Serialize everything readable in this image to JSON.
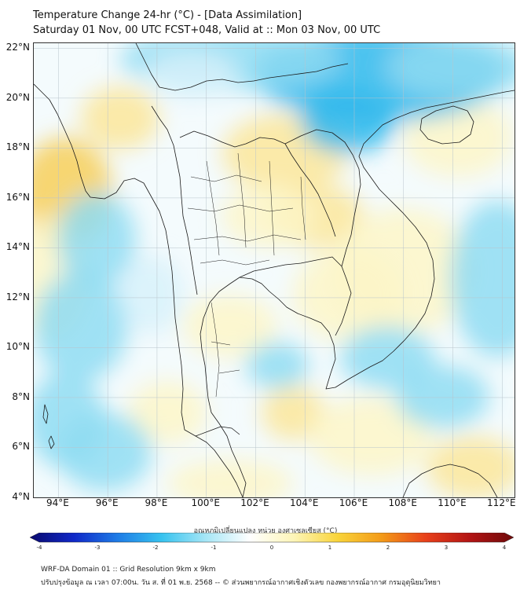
{
  "header": {
    "title": "Temperature Change 24-hr (°C) - [Data Assimilation]",
    "subtitle": "Saturday 01 Nov, 00 UTC FCST+048, Valid at :: Mon 03 Nov, 00 UTC"
  },
  "map": {
    "lat_labels": [
      "22°N",
      "20°N",
      "18°N",
      "16°N",
      "14°N",
      "12°N",
      "10°N",
      "8°N",
      "6°N",
      "4°N"
    ],
    "lon_labels": [
      "94°E",
      "96°E",
      "98°E",
      "100°E",
      "102°E",
      "104°E",
      "106°E",
      "108°E",
      "110°E",
      "112°E"
    ],
    "lat_range": [
      4,
      22.2
    ],
    "lon_range": [
      93,
      112.5
    ],
    "colors": {
      "land_border": "#1a1a1a",
      "grid": "#b8c4cc",
      "warm_light": "#fdf6c8",
      "warm": "#fbe69a",
      "warm_strong": "#f7cf5a",
      "cool_light": "#d7f1fa",
      "cool": "#8fdcf2",
      "cool_strong": "#2fb8ec"
    }
  },
  "colorbar": {
    "title": "อุณหภูมิเปลี่ยนแปลง หน่วย องศาเซลเซียส (°C)",
    "ticks": [
      "-4",
      "-3",
      "-2",
      "-1",
      "0",
      "1",
      "2",
      "3",
      "4"
    ],
    "range": [
      -4,
      4
    ],
    "colors": [
      "#0a0a6e",
      "#1028c8",
      "#1e7ce6",
      "#37c3ef",
      "#a6e6f6",
      "#ffffff",
      "#fdf5b8",
      "#f9d43a",
      "#f39a18",
      "#e8401a",
      "#b31414",
      "#6e0a0a"
    ]
  },
  "footer": {
    "line1": "WRF-DA Domain 01 :: Grid Resolution 9km x 9km",
    "line2": "ปรับปรุงข้อมูล ณ เวลา 07:00น. วัน ส. ที่ 01 พ.ย. 2568 -- © ส่วนพยากรณ์อากาศเชิงตัวเลข กองพยากรณ์อากาศ กรมอุตุนิยมวิทยา"
  }
}
